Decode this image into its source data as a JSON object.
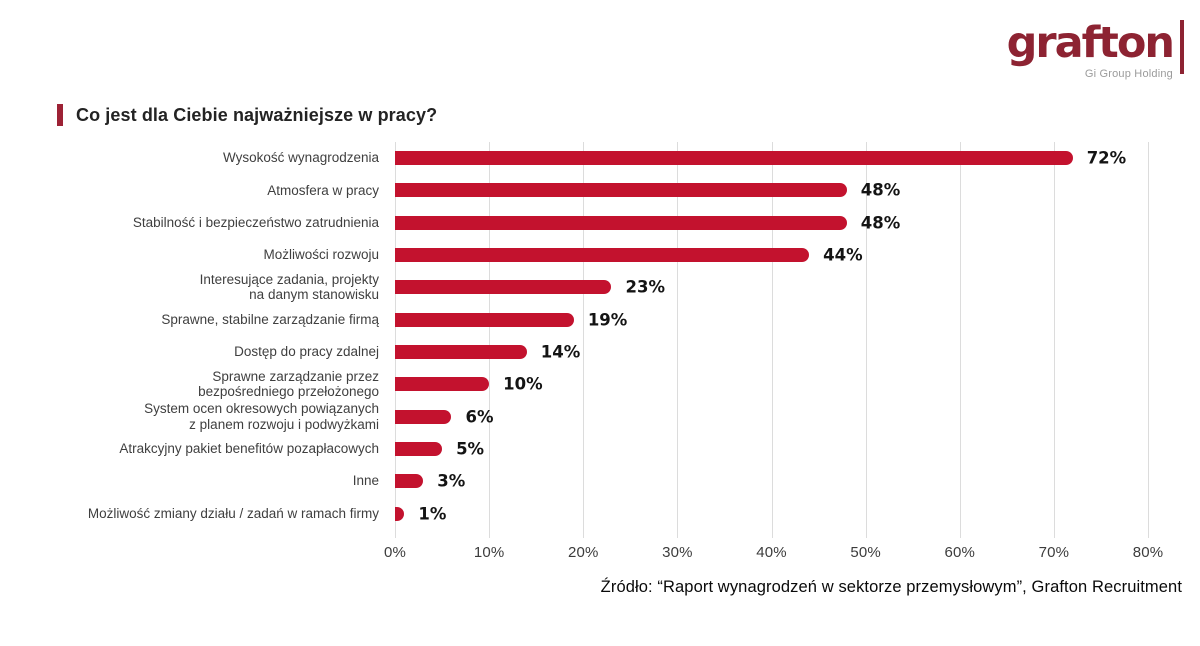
{
  "logo": {
    "brand": "grafton",
    "subtitle": "Gi Group Holding"
  },
  "title": "Co jest dla Ciebie najważniejsze w pracy?",
  "source": "Źródło: “Raport wynagrodzeń w  sektorze przemysłowym”, Grafton Recruitment",
  "colors": {
    "bar": "#C3122E",
    "logo": "#8D2332",
    "accent": "#9D2235",
    "grid": "#DCDCDC"
  },
  "chart_data": {
    "type": "bar",
    "orientation": "horizontal",
    "title": "Co jest dla Ciebie najważniejsze w pracy?",
    "categories": [
      "Wysokość wynagrodzenia",
      "Atmosfera w pracy",
      "Stabilność i bezpieczeństwo zatrudnienia",
      "Możliwości rozwoju",
      "Interesujące zadania, projekty\nna danym stanowisku",
      "Sprawne, stabilne zarządzanie firmą",
      "Dostęp do pracy zdalnej",
      "Sprawne zarządzanie przez\nbezpośredniego przełożonego",
      "System ocen okresowych powiązanych\nz planem rozwoju i podwyżkami",
      "Atrakcyjny pakiet benefitów pozapłacowych",
      "Inne",
      "Możliwość zmiany działu / zadań w ramach firmy"
    ],
    "values": [
      72,
      48,
      48,
      44,
      23,
      19,
      14,
      10,
      6,
      5,
      3,
      1
    ],
    "value_labels": [
      "72%",
      "48%",
      "48%",
      "44%",
      "23%",
      "19%",
      "14%",
      "10%",
      "6%",
      "5%",
      "3%",
      "1%"
    ],
    "xlim": [
      0,
      80
    ],
    "x_ticks": [
      "0%",
      "10%",
      "20%",
      "30%",
      "40%",
      "50%",
      "60%",
      "70%",
      "80%"
    ],
    "grid": true,
    "legend": false,
    "bar_color": "#C3122E"
  }
}
